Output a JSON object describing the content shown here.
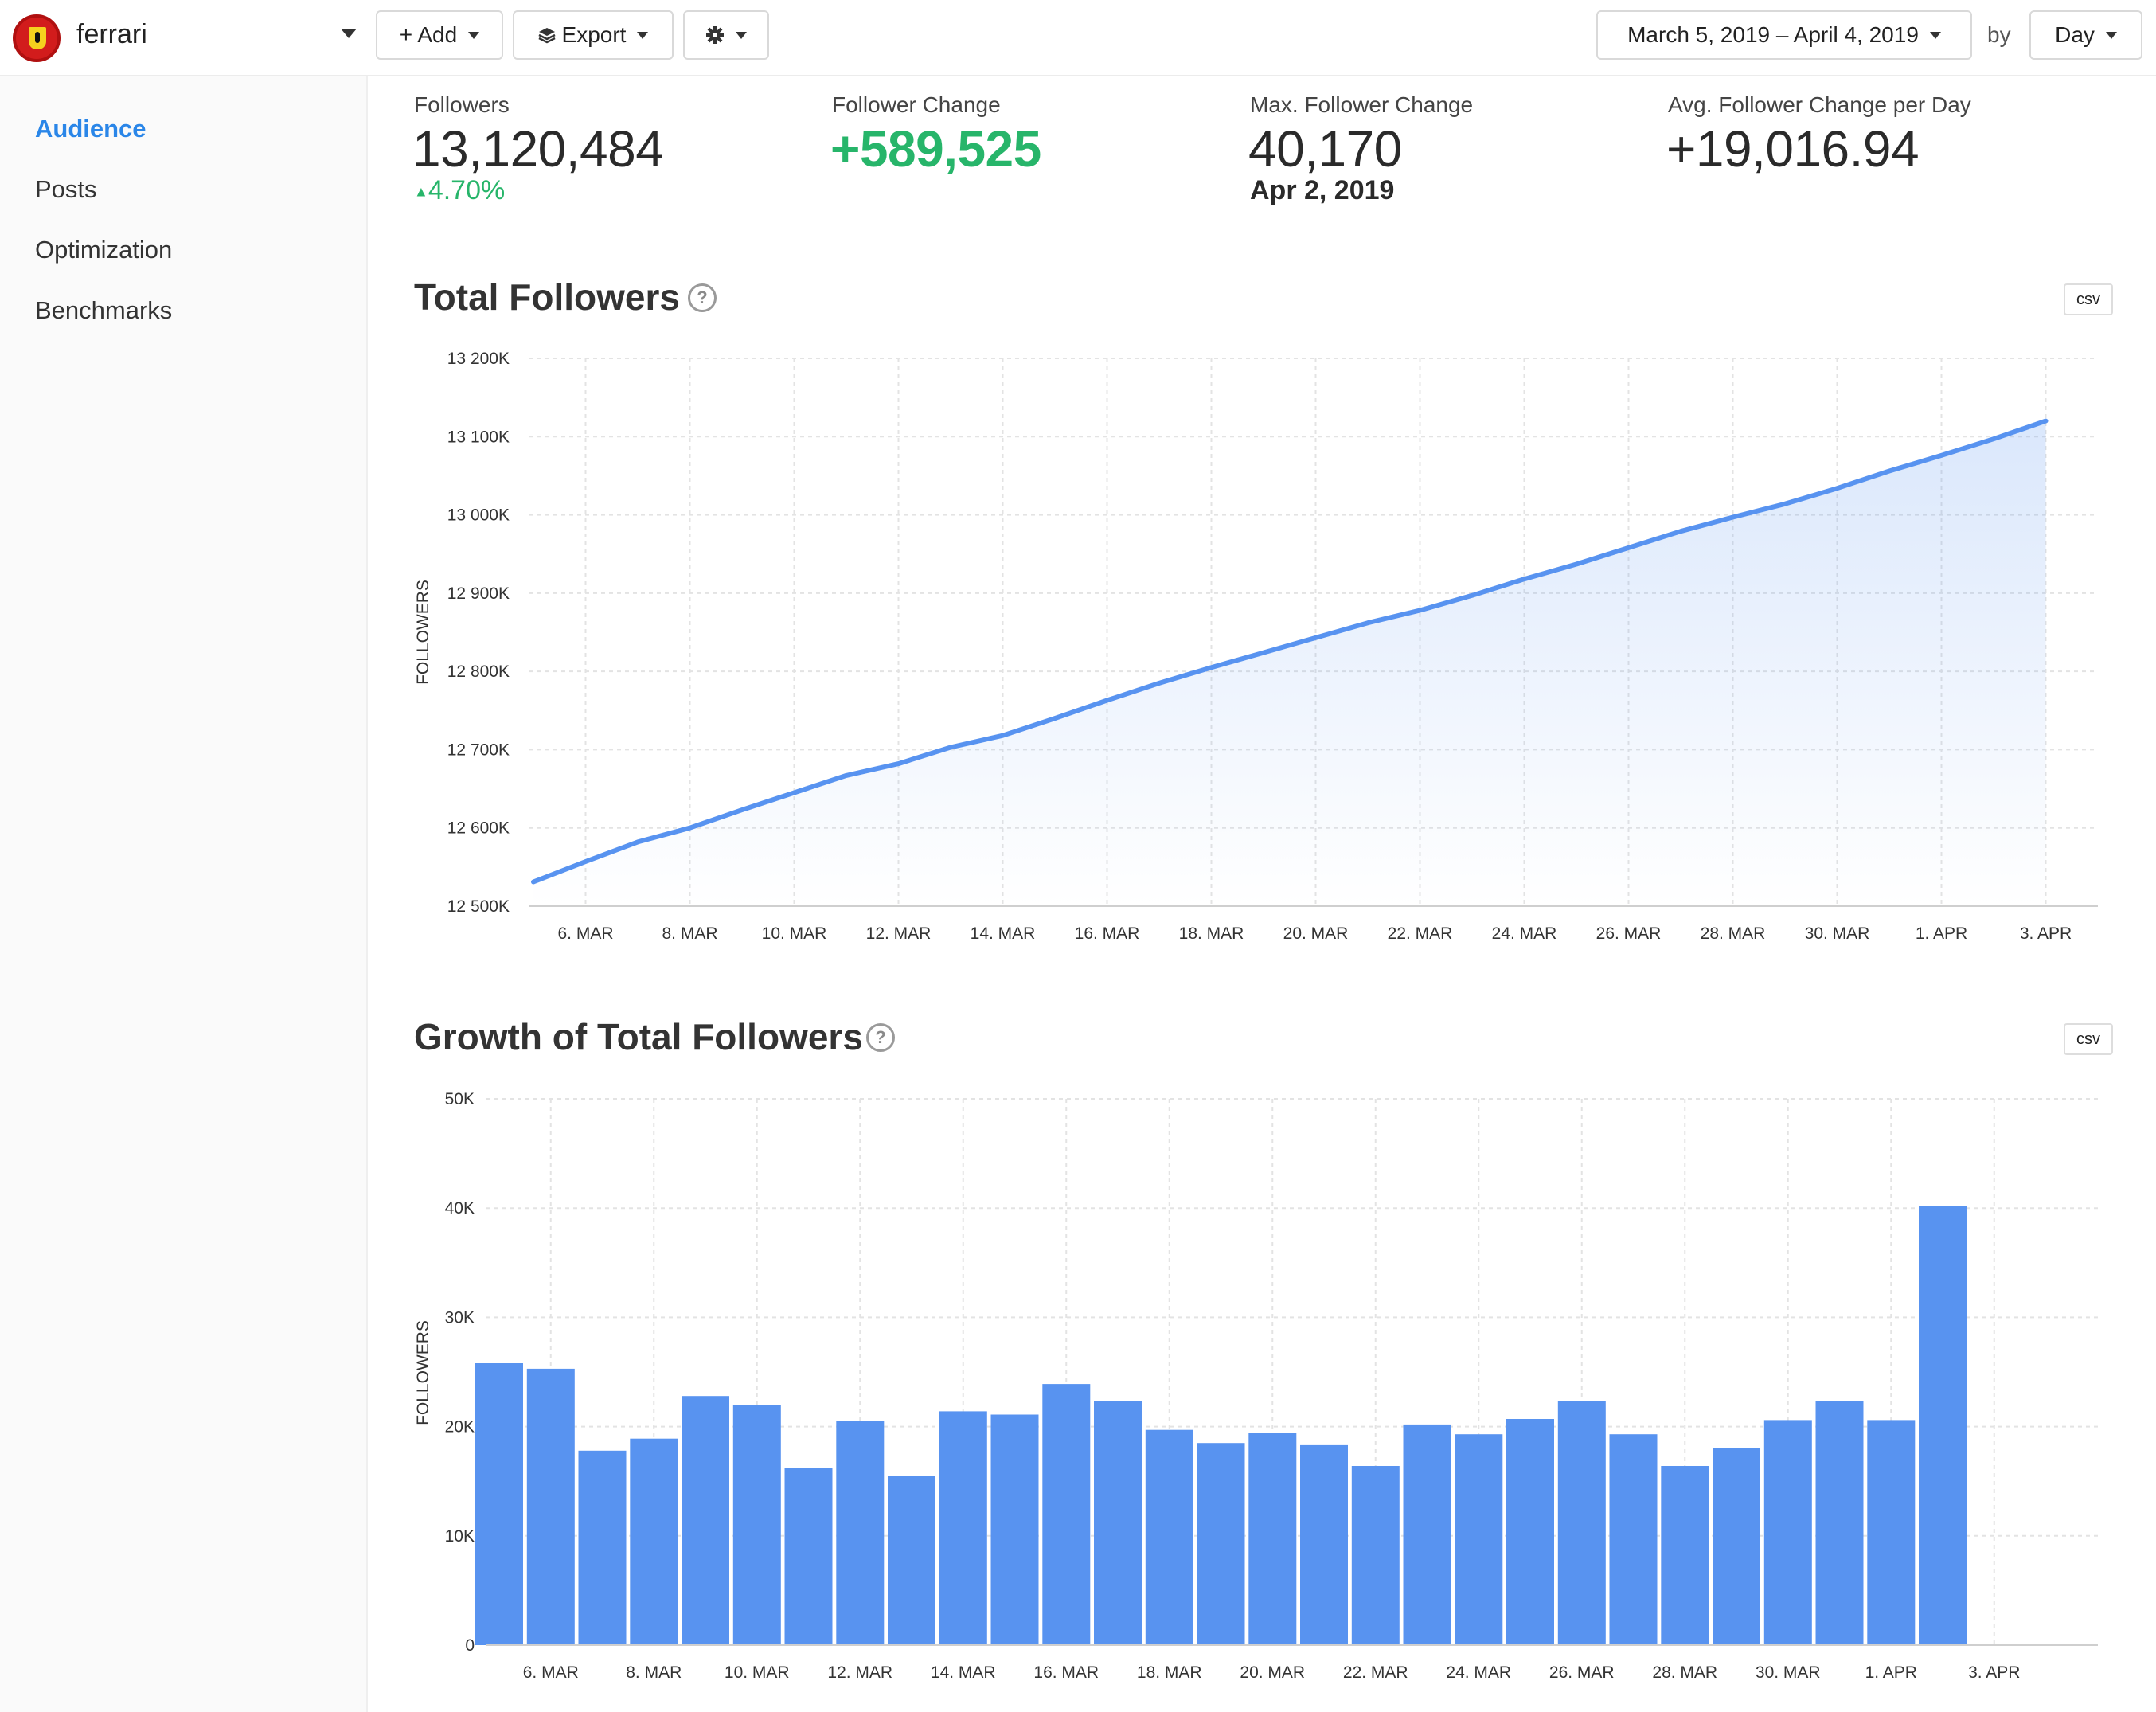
{
  "header": {
    "account_name": "ferrari",
    "add_label": "+ Add",
    "export_label": "Export",
    "date_range": "March 5, 2019 – April 4, 2019",
    "by_label": "by",
    "granularity": "Day"
  },
  "sidebar": {
    "items": [
      {
        "label": "Audience",
        "active": true
      },
      {
        "label": "Posts",
        "active": false
      },
      {
        "label": "Optimization",
        "active": false
      },
      {
        "label": "Benchmarks",
        "active": false
      }
    ]
  },
  "stats": {
    "followers": {
      "label": "Followers",
      "value": "13,120,484",
      "change": "4.70%"
    },
    "follower_change": {
      "label": "Follower Change",
      "value": "+589,525"
    },
    "max_change": {
      "label": "Max. Follower Change",
      "value": "40,170",
      "date": "Apr 2, 2019"
    },
    "avg_change": {
      "label": "Avg. Follower Change per Day",
      "value": "+19,016.94"
    }
  },
  "colors": {
    "accent": "#2a86e8",
    "positive": "#27b56a",
    "series": "#5893f0"
  },
  "icons": {
    "help": "question-circle-icon",
    "settings": "gear-icon",
    "export": "layers-icon"
  },
  "charts": {
    "total": {
      "title": "Total Followers",
      "csv": "csv"
    },
    "growth": {
      "title": "Growth of Total Followers",
      "csv": "csv"
    }
  },
  "chart_data": [
    {
      "type": "area",
      "title": "Total Followers",
      "ylabel": "FOLLOWERS",
      "xlabel": "",
      "ylim": [
        12500000,
        13200000
      ],
      "yticks": [
        "12 500K",
        "12 600K",
        "12 700K",
        "12 800K",
        "12 900K",
        "13 000K",
        "13 100K",
        "13 200K"
      ],
      "xticks": [
        "6. MAR",
        "8. MAR",
        "10. MAR",
        "12. MAR",
        "14. MAR",
        "16. MAR",
        "18. MAR",
        "20. MAR",
        "22. MAR",
        "24. MAR",
        "26. MAR",
        "28. MAR",
        "30. MAR",
        "1. APR",
        "3. APR"
      ],
      "grid": true,
      "series": [
        {
          "x": [
            "5. MAR",
            "6. MAR",
            "7. MAR",
            "8. MAR",
            "9. MAR",
            "10. MAR",
            "11. MAR",
            "12. MAR",
            "13. MAR",
            "14. MAR",
            "15. MAR",
            "16. MAR",
            "17. MAR",
            "18. MAR",
            "19. MAR",
            "20. MAR",
            "21. MAR",
            "22. MAR",
            "23. MAR",
            "24. MAR",
            "25. MAR",
            "26. MAR",
            "27. MAR",
            "28. MAR",
            "29. MAR",
            "30. MAR",
            "31. MAR",
            "1. APR",
            "2. APR",
            "3. APR"
          ],
          "values": [
            12531000,
            12557000,
            12582000,
            12600000,
            12623000,
            12645000,
            12667000,
            12682000,
            12703000,
            12718000,
            12740000,
            12763000,
            12785000,
            12805000,
            12824000,
            12843000,
            12862000,
            12878000,
            12897000,
            12918000,
            12937000,
            12958000,
            12979000,
            12997000,
            13014000,
            13034000,
            13056000,
            13076000,
            13097000,
            13120000
          ]
        }
      ]
    },
    {
      "type": "bar",
      "title": "Growth of Total Followers",
      "ylabel": "FOLLOWERS",
      "xlabel": "",
      "ylim": [
        0,
        50000
      ],
      "yticks": [
        "0",
        "10K",
        "20K",
        "30K",
        "40K",
        "50K"
      ],
      "xticks": [
        "6. MAR",
        "8. MAR",
        "10. MAR",
        "12. MAR",
        "14. MAR",
        "16. MAR",
        "18. MAR",
        "20. MAR",
        "22. MAR",
        "24. MAR",
        "26. MAR",
        "28. MAR",
        "30. MAR",
        "1. APR",
        "3. APR"
      ],
      "grid": true,
      "categories": [
        "5. MAR",
        "6. MAR",
        "7. MAR",
        "8. MAR",
        "9. MAR",
        "10. MAR",
        "11. MAR",
        "12. MAR",
        "13. MAR",
        "14. MAR",
        "15. MAR",
        "16. MAR",
        "17. MAR",
        "18. MAR",
        "19. MAR",
        "20. MAR",
        "21. MAR",
        "22. MAR",
        "23. MAR",
        "24. MAR",
        "25. MAR",
        "26. MAR",
        "27. MAR",
        "28. MAR",
        "29. MAR",
        "30. MAR",
        "31. MAR",
        "1. APR",
        "2. APR"
      ],
      "values": [
        25800,
        25300,
        17800,
        18900,
        22800,
        22000,
        16200,
        20500,
        15500,
        21400,
        21100,
        23900,
        22300,
        19700,
        18500,
        19400,
        18300,
        16400,
        20200,
        19300,
        20700,
        22300,
        19300,
        16400,
        18000,
        20600,
        22300,
        20600,
        40170
      ]
    }
  ]
}
